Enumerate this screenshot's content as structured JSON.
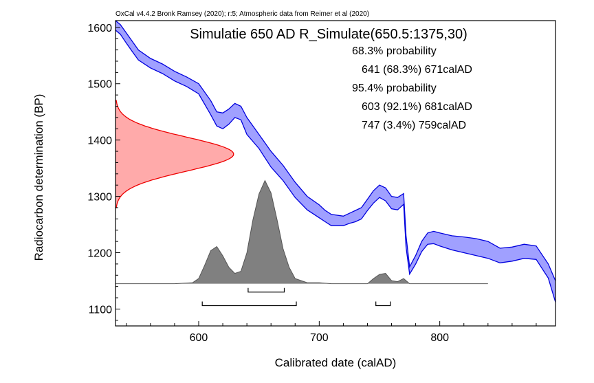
{
  "chart_data": {
    "type": "area",
    "credit": "OxCal v4.4.2 Bronk Ramsey (2020); r:5; Atmospheric data from Reimer et al (2020)",
    "title": "Simulatie 650 AD R_Simulate(650.5:1375,30)",
    "xlabel": "Calibrated date (calAD)",
    "ylabel": "Radiocarbon determination (BP)",
    "xlim": [
      531,
      896
    ],
    "ylim": [
      1070,
      1612
    ],
    "x_ticks": [
      600,
      700,
      800
    ],
    "y_ticks": [
      1100,
      1200,
      1300,
      1400,
      1500,
      1600
    ],
    "annotations": [
      {
        "id": "h68",
        "text": "68.3% probability"
      },
      {
        "id": "r68a",
        "text": "641 (68.3%) 671calAD"
      },
      {
        "id": "h95",
        "text": "95.4% probability"
      },
      {
        "id": "r95a",
        "text": "603 (92.1%) 681calAD"
      },
      {
        "id": "r95b",
        "text": "747 (3.4%) 759calAD"
      }
    ],
    "colors": {
      "calibration_fill": "#a0a0ff",
      "calibration_line": "#0000dd",
      "measurement_fill": "#ffaaaa",
      "measurement_line": "#ee0000",
      "posterior_fill": "#808080",
      "posterior_line": "#555555"
    },
    "series": [
      {
        "kind": "calibration-curve",
        "x": [
          531,
          535,
          540,
          545,
          550,
          560,
          570,
          580,
          590,
          600,
          610,
          615,
          620,
          625,
          630,
          635,
          640,
          650,
          660,
          670,
          680,
          690,
          700,
          705,
          710,
          720,
          725,
          730,
          735,
          740,
          745,
          750,
          755,
          760,
          765,
          770,
          772,
          775,
          780,
          785,
          790,
          795,
          800,
          810,
          820,
          830,
          840,
          850,
          860,
          870,
          880,
          890,
          896
        ],
        "upper": [
          1612,
          1605,
          1590,
          1575,
          1560,
          1545,
          1535,
          1522,
          1512,
          1500,
          1470,
          1450,
          1448,
          1455,
          1465,
          1460,
          1440,
          1410,
          1380,
          1355,
          1325,
          1300,
          1285,
          1275,
          1268,
          1265,
          1270,
          1275,
          1280,
          1295,
          1310,
          1320,
          1315,
          1300,
          1298,
          1305,
          1230,
          1175,
          1195,
          1220,
          1235,
          1238,
          1235,
          1230,
          1228,
          1225,
          1220,
          1208,
          1210,
          1215,
          1212,
          1180,
          1150
        ],
        "lower": [
          1595,
          1588,
          1572,
          1557,
          1542,
          1528,
          1518,
          1505,
          1495,
          1482,
          1445,
          1425,
          1420,
          1428,
          1440,
          1436,
          1410,
          1385,
          1352,
          1328,
          1298,
          1276,
          1262,
          1255,
          1248,
          1248,
          1252,
          1255,
          1260,
          1275,
          1288,
          1298,
          1292,
          1278,
          1276,
          1286,
          1210,
          1162,
          1180,
          1202,
          1215,
          1216,
          1212,
          1205,
          1200,
          1195,
          1190,
          1182,
          1185,
          1190,
          1188,
          1155,
          1112
        ]
      },
      {
        "kind": "measurement-density",
        "mean": 1375,
        "sigma": 30,
        "x_start": 531,
        "peak_x": 629
      },
      {
        "kind": "posterior-distribution",
        "baseline_bp": 1145,
        "peak_bp": 1328,
        "x": [
          531,
          580,
          595,
          600,
          605,
          610,
          615,
          620,
          625,
          630,
          635,
          640,
          645,
          650,
          655,
          660,
          665,
          670,
          675,
          680,
          690,
          700,
          710,
          740,
          745,
          750,
          755,
          760,
          765,
          770,
          775,
          840
        ],
        "density": [
          0,
          0,
          0.01,
          0.05,
          0.18,
          0.32,
          0.36,
          0.27,
          0.16,
          0.1,
          0.12,
          0.3,
          0.62,
          0.87,
          1.0,
          0.88,
          0.62,
          0.34,
          0.16,
          0.05,
          0.01,
          0.01,
          0,
          0,
          0.05,
          0.09,
          0.1,
          0.03,
          0.02,
          0.05,
          0,
          0
        ]
      }
    ],
    "ranges": [
      {
        "level": "68.3%",
        "from": 641,
        "to": 671,
        "bp": 1130
      },
      {
        "level": "95.4%",
        "from": 603,
        "to": 681,
        "bp": 1106
      },
      {
        "level": "95.4%",
        "from": 747,
        "to": 759,
        "bp": 1106
      }
    ]
  }
}
